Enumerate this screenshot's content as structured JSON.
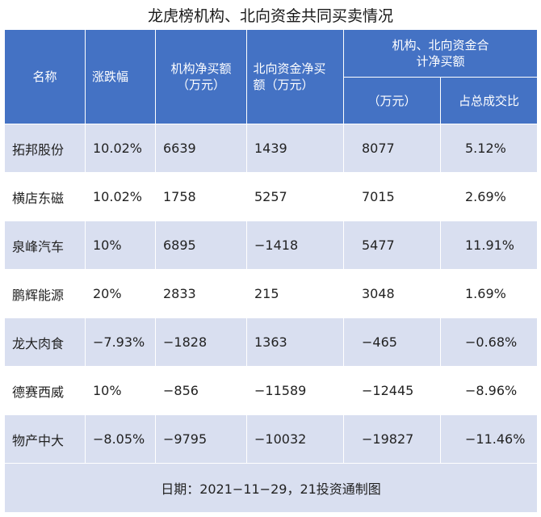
{
  "title": "龙虎榜机构、北向资金共同买卖情况",
  "headers": {
    "name": "名称",
    "change": "涨跌幅",
    "inst_buy": "机构净买额（万元）",
    "north_buy": "北向资金净买额（万元）",
    "combined_group": "机构、北向资金合计净买额",
    "combined_amount": "（万元）",
    "combined_share": "占总成交比"
  },
  "rows": [
    {
      "name": "拓邦股份",
      "change": "10.02%",
      "inst": "6639",
      "north": "1439",
      "total": "8077",
      "share": "5.12%"
    },
    {
      "name": "横店东磁",
      "change": "10.02%",
      "inst": "1758",
      "north": "5257",
      "total": "7015",
      "share": "2.69%"
    },
    {
      "name": "泉峰汽车",
      "change": "10%",
      "inst": "6895",
      "north": "−1418",
      "total": "5477",
      "share": "11.91%"
    },
    {
      "name": "鹏辉能源",
      "change": "20%",
      "inst": "2833",
      "north": "215",
      "total": "3048",
      "share": "1.69%"
    },
    {
      "name": "龙大肉食",
      "change": "−7.93%",
      "inst": "−1828",
      "north": "1363",
      "total": "−465",
      "share": "−0.68%"
    },
    {
      "name": "德赛西威",
      "change": "10%",
      "inst": "−856",
      "north": "−11589",
      "total": "−12445",
      "share": "−8.96%"
    },
    {
      "name": "物产中大",
      "change": "−8.05%",
      "inst": "−9795",
      "north": "−10032",
      "total": "−19827",
      "share": "−11.46%"
    }
  ],
  "footer": "日期：2021−11−29，21投资通制图"
}
